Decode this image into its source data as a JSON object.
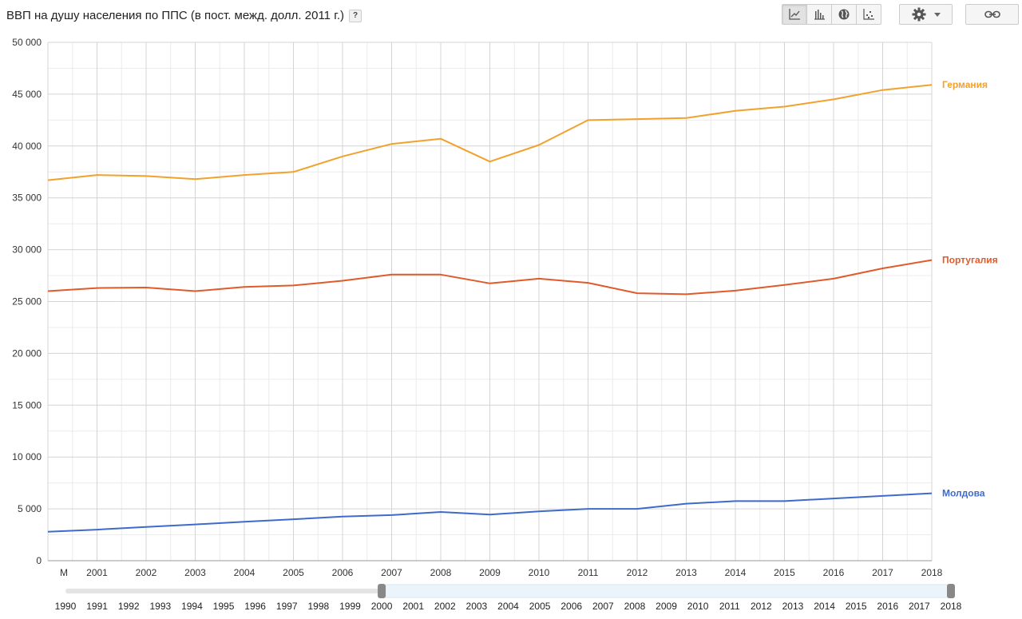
{
  "title": "ВВП на душу населения по ППС (в пост. межд. долл. 2011 г.)",
  "help_label": "?",
  "toolbar": {
    "buttons": [
      {
        "name": "line-chart-icon",
        "active": true
      },
      {
        "name": "bar-chart-icon",
        "active": false
      },
      {
        "name": "globe-icon",
        "active": false
      },
      {
        "name": "scatter-chart-icon",
        "active": false
      }
    ],
    "settings_icon": "gear-icon",
    "link_icon": "link-icon"
  },
  "chart_data": {
    "type": "line",
    "title": "ВВП на душу населения по ППС (в пост. межд. долл. 2011 г.)",
    "xlabel": "",
    "ylabel": "",
    "x_tick_labels": [
      "M",
      "2001",
      "2002",
      "2003",
      "2004",
      "2005",
      "2006",
      "2007",
      "2008",
      "2009",
      "2010",
      "2011",
      "2012",
      "2013",
      "2014",
      "2015",
      "2016",
      "2017",
      "2018"
    ],
    "y_ticks": [
      "0",
      "5 000",
      "10 000",
      "15 000",
      "20 000",
      "25 000",
      "30 000",
      "35 000",
      "40 000",
      "45 000",
      "50 000"
    ],
    "ylim": [
      0,
      50000
    ],
    "grid": true,
    "legend": "right-end labels",
    "series": [
      {
        "name": "Германия",
        "color": "#f2a12c",
        "values": [
          36700,
          37200,
          37100,
          36800,
          37200,
          37500,
          39000,
          40200,
          40700,
          38500,
          40100,
          42500,
          42600,
          42700,
          43400,
          43800,
          44500,
          45400,
          45900
        ]
      },
      {
        "name": "Португалия",
        "color": "#e05a2b",
        "values": [
          26000,
          26300,
          26350,
          26000,
          26400,
          26550,
          27000,
          27600,
          27600,
          26750,
          27200,
          26800,
          25800,
          25700,
          26050,
          26600,
          27200,
          28200,
          29000
        ]
      },
      {
        "name": "Молдова",
        "color": "#3e6bcb",
        "values": [
          2800,
          3000,
          3250,
          3500,
          3750,
          4000,
          4250,
          4400,
          4700,
          4450,
          4750,
          5000,
          5000,
          5500,
          5750,
          5750,
          6000,
          6250,
          6500
        ]
      }
    ]
  },
  "timeline": {
    "years": [
      "1990",
      "1991",
      "1992",
      "1993",
      "1994",
      "1995",
      "1996",
      "1997",
      "1998",
      "1999",
      "2000",
      "2001",
      "2002",
      "2003",
      "2004",
      "2005",
      "2006",
      "2007",
      "2008",
      "2009",
      "2010",
      "2011",
      "2012",
      "2013",
      "2014",
      "2015",
      "2016",
      "2017",
      "2018"
    ],
    "selected_start": "2000",
    "selected_end": "2018"
  }
}
